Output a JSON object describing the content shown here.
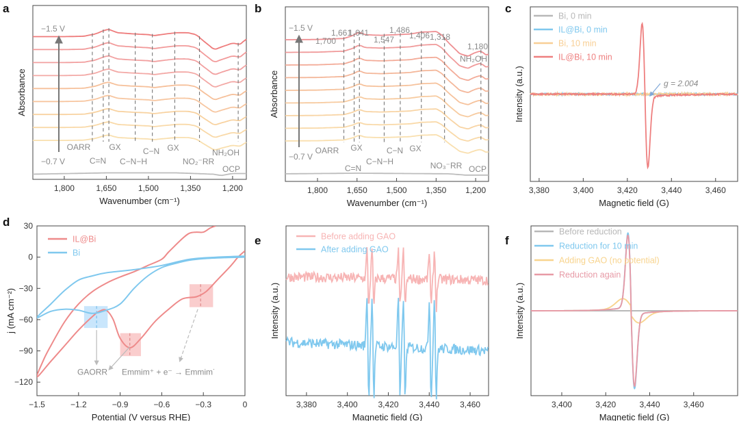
{
  "chart_data": [
    {
      "panel": "a",
      "type": "line",
      "xlabel": "Wavenumber (cm⁻¹)",
      "ylabel": "Absorbance",
      "xlim": [
        1912,
        1151
      ],
      "ylim": [
        -3,
        10.4
      ],
      "xticks": [
        1800,
        1650,
        1500,
        1350,
        1200
      ],
      "xtick_labels": [
        "1,800",
        "1,650",
        "1,500",
        "1,350",
        "1,200"
      ],
      "potential_top": "−1.5 V",
      "potential_bottom": "−0.7 V",
      "curve_count": 9,
      "curve_colors": [
        "#f9dfae",
        "#f9d9a8",
        "#f8d2a0",
        "#f7c6a0",
        "#f6c09a",
        "#f3a9a6",
        "#f2a0a0",
        "#f29a9a",
        "#ee7b7b"
      ],
      "ocp_color": "#bdbdbd",
      "profile": [
        [
          1912,
          0
        ],
        [
          1800,
          0
        ],
        [
          1730,
          0.03
        ],
        [
          1690,
          0.2
        ],
        [
          1655,
          0.5
        ],
        [
          1641,
          0.55
        ],
        [
          1610,
          0.3
        ],
        [
          1560,
          0.22
        ],
        [
          1500,
          0.15
        ],
        [
          1480,
          0.08
        ],
        [
          1440,
          0.2
        ],
        [
          1400,
          0.3
        ],
        [
          1360,
          0.3
        ],
        [
          1330,
          0.15
        ],
        [
          1300,
          -0.4
        ],
        [
          1265,
          -1.0
        ],
        [
          1240,
          -0.8
        ],
        [
          1200,
          -0.5
        ],
        [
          1175,
          -0.6
        ],
        [
          1151,
          -0.2
        ]
      ],
      "ocp_profile": [
        [
          1912,
          -2.6
        ],
        [
          1650,
          -2.5
        ],
        [
          1400,
          -2.5
        ],
        [
          1270,
          -2.6
        ],
        [
          1240,
          -2.7
        ],
        [
          1200,
          -2.55
        ],
        [
          1151,
          -2.55
        ]
      ],
      "marker_lines": [
        1700,
        1661,
        1641,
        1547,
        1486,
        1406,
        1318,
        1180
      ],
      "annotations": [
        "OARR",
        "C=N",
        "GX",
        "C−N−H",
        "C−N",
        "GX",
        "NO₂⁻RR",
        "NH₂OH",
        "OCP"
      ]
    },
    {
      "panel": "b",
      "type": "line",
      "xlabel": "Wavenumber (cm⁻¹)",
      "ylabel": "Absorbance",
      "xlim": [
        1922,
        1151
      ],
      "ylim": [
        -3.2,
        10.6
      ],
      "xticks": [
        1800,
        1650,
        1500,
        1350,
        1200
      ],
      "xtick_labels": [
        "1,800",
        "1,650",
        "1,500",
        "1,350",
        "1,200"
      ],
      "potential_top": "−1.5 V",
      "potential_bottom": "−0.7 V",
      "curve_count": 9,
      "curve_colors": [
        "#f9dfae",
        "#f9d9a8",
        "#f8d4a4",
        "#f7cba0",
        "#f6c29c",
        "#f4b79a",
        "#f3ab98",
        "#f09a9a",
        "#ee8f92"
      ],
      "ocp_color": "#bdbdbd",
      "profile": [
        [
          1922,
          0
        ],
        [
          1800,
          0.02
        ],
        [
          1700,
          0.1
        ],
        [
          1670,
          0.3
        ],
        [
          1641,
          0.6
        ],
        [
          1620,
          0.4
        ],
        [
          1560,
          0.35
        ],
        [
          1500,
          0.4
        ],
        [
          1450,
          0.45
        ],
        [
          1406,
          0.6
        ],
        [
          1350,
          0.65
        ],
        [
          1330,
          0.4
        ],
        [
          1300,
          -0.3
        ],
        [
          1260,
          -1.1
        ],
        [
          1230,
          -1.3
        ],
        [
          1200,
          -1.0
        ],
        [
          1180,
          -0.9
        ],
        [
          1160,
          -1.2
        ],
        [
          1151,
          -1.15
        ]
      ],
      "ocp_profile": [
        [
          1922,
          -2.6
        ],
        [
          1650,
          -2.55
        ],
        [
          1300,
          -2.6
        ],
        [
          1240,
          -2.7
        ],
        [
          1151,
          -2.7
        ]
      ],
      "peak_labels": [
        "1,700",
        "1,661",
        "1,641",
        "1,547",
        "1,486",
        "1,406",
        "1,318",
        "1,180"
      ],
      "marker_lines": [
        1700,
        1661,
        1641,
        1547,
        1486,
        1406,
        1318,
        1180
      ],
      "annotations": [
        "OARR",
        "GX",
        "C=N",
        "C−N−H",
        "C−N",
        "GX",
        "NO₃⁻RR",
        "NH₂OH",
        "OCP"
      ]
    },
    {
      "panel": "c",
      "type": "line",
      "xlabel": "Magnetic field (G)",
      "ylabel": "Intensity (a.u.)",
      "xlim": [
        3376,
        3470
      ],
      "ylim": [
        -1.15,
        1.15
      ],
      "xticks": [
        3380,
        3400,
        3420,
        3440,
        3460
      ],
      "xtick_labels": [
        "3,380",
        "3,400",
        "3,420",
        "3,440",
        "3,460"
      ],
      "legend_position": "top-left",
      "series": [
        {
          "name": "Bi, 0 min",
          "color": "#b8b8b8",
          "amplitude": 0,
          "noise": 0.01
        },
        {
          "name": "IL@Bi, 0 min",
          "color": "#7fc8ee",
          "amplitude": 0,
          "noise": 0.012
        },
        {
          "name": "Bi, 10 min",
          "color": "#f8cf95",
          "amplitude": 0,
          "noise": 0.015
        },
        {
          "name": "IL@Bi, 10 min",
          "color": "#ee7f7f",
          "amplitude": 0.93,
          "center": 3428,
          "width": 1.3,
          "noise": 0.01
        }
      ],
      "annotation": "g = 2.004",
      "annotation_color": "#7fa8d8"
    },
    {
      "panel": "d",
      "type": "line",
      "xlabel": "Potential (V versus RHE)",
      "ylabel": "j (mA cm⁻²)",
      "xlim": [
        -1.5,
        0
      ],
      "ylim": [
        -133,
        30
      ],
      "xticks": [
        -1.5,
        -1.2,
        -0.9,
        -0.6,
        -0.3,
        0
      ],
      "xtick_labels": [
        "−1.5",
        "−1.2",
        "−0.9",
        "−0.6",
        "−0.3",
        "0"
      ],
      "yticks": [
        30,
        0,
        -30,
        -60,
        -90,
        -120
      ],
      "ytick_labels": [
        "30",
        "0",
        "−30",
        "−60",
        "−90",
        "−120"
      ],
      "legend_position": "top-left",
      "series": [
        {
          "name": "IL@Bi",
          "color": "#ee8a8a",
          "points": [
            [
              0,
              6
            ],
            [
              -0.05,
              0
            ],
            [
              -0.1,
              -8
            ],
            [
              -0.2,
              -22
            ],
            [
              -0.28,
              -33
            ],
            [
              -0.35,
              -38
            ],
            [
              -0.45,
              -40
            ],
            [
              -0.55,
              -50
            ],
            [
              -0.65,
              -62
            ],
            [
              -0.75,
              -78
            ],
            [
              -0.83,
              -87
            ],
            [
              -0.9,
              -78
            ],
            [
              -0.95,
              -60
            ],
            [
              -1.0,
              -51
            ],
            [
              -1.05,
              -52
            ],
            [
              -1.1,
              -57
            ],
            [
              -1.2,
              -70
            ],
            [
              -1.3,
              -85
            ],
            [
              -1.4,
              -100
            ],
            [
              -1.5,
              -115
            ],
            [
              -1.45,
              -98
            ],
            [
              -1.4,
              -85
            ],
            [
              -1.3,
              -62
            ],
            [
              -1.2,
              -45
            ],
            [
              -1.1,
              -33
            ],
            [
              -1.0,
              -25
            ],
            [
              -0.9,
              -19
            ],
            [
              -0.8,
              -14
            ],
            [
              -0.7,
              -8
            ],
            [
              -0.6,
              -2
            ],
            [
              -0.55,
              5
            ],
            [
              -0.45,
              18
            ],
            [
              -0.4,
              23
            ],
            [
              -0.35,
              24
            ],
            [
              -0.3,
              24
            ],
            [
              -0.25,
              28
            ],
            [
              -0.21,
              30
            ]
          ]
        },
        {
          "name": "Bi",
          "color": "#7fc8ee",
          "points": [
            [
              0,
              0
            ],
            [
              -0.15,
              -0.5
            ],
            [
              -0.3,
              -1.5
            ],
            [
              -0.4,
              -3
            ],
            [
              -0.5,
              -6
            ],
            [
              -0.6,
              -10
            ],
            [
              -0.7,
              -18
            ],
            [
              -0.8,
              -30
            ],
            [
              -0.9,
              -45
            ],
            [
              -1.0,
              -51
            ],
            [
              -1.1,
              -54
            ],
            [
              -1.2,
              -51
            ],
            [
              -1.3,
              -50
            ],
            [
              -1.4,
              -52
            ],
            [
              -1.5,
              -58
            ],
            [
              -1.4,
              -45
            ],
            [
              -1.3,
              -32
            ],
            [
              -1.2,
              -22
            ],
            [
              -1.1,
              -18
            ],
            [
              -1.0,
              -15
            ],
            [
              -0.8,
              -12
            ],
            [
              -0.6,
              -8
            ],
            [
              -0.4,
              -2
            ],
            [
              -0.2,
              0
            ],
            [
              0,
              1
            ]
          ]
        }
      ],
      "highlight_regions": [
        {
          "x": [
            -1.16,
            -0.99
          ],
          "y": [
            -68,
            -47
          ],
          "center": -1.07,
          "color": "#bfe2fb"
        },
        {
          "x": [
            -0.9,
            -0.75
          ],
          "y": [
            -95,
            -73
          ],
          "center": -0.83,
          "color": "#f9c4c4"
        },
        {
          "x": [
            -0.4,
            -0.23
          ],
          "y": [
            -48,
            -26
          ],
          "center": -0.32,
          "color": "#f9c4c4"
        }
      ],
      "annotations": [
        "GAORR",
        "Emmim⁺ + e⁻ → Emmim˙"
      ]
    },
    {
      "panel": "e",
      "type": "line",
      "xlabel": "Magnetic field (G)",
      "ylabel": "Intensity (a.u.)",
      "xlim": [
        3370,
        3469
      ],
      "ylim": [
        -1,
        1
      ],
      "xticks": [
        3380,
        3400,
        3420,
        3440,
        3460
      ],
      "xtick_labels": [
        "3,380",
        "3,400",
        "3,420",
        "3,440",
        "3,460"
      ],
      "legend_position": "top-left",
      "hyperfine_lines": [
        3410,
        3412.5,
        3425.3,
        3427.8,
        3440.5,
        3443
      ],
      "series": [
        {
          "name": "Before adding GAO",
          "color": "#f7b4b4",
          "offset": 0.4,
          "amplitude": 0.33,
          "noise": 0.06,
          "slope": -0.04
        },
        {
          "name": "After adding GAO",
          "color": "#7fc8ee",
          "offset": -0.37,
          "amplitude": 0.6,
          "noise": 0.06,
          "slope": -0.1
        }
      ]
    },
    {
      "panel": "f",
      "type": "line",
      "xlabel": "Magnetic field (G)",
      "ylabel": "Intensity (a.u.)",
      "xlim": [
        3386,
        3480
      ],
      "ylim": [
        -1.1,
        1.1
      ],
      "xticks": [
        3400,
        3420,
        3440,
        3460
      ],
      "xtick_labels": [
        "3,400",
        "3,420",
        "3,440",
        "3,460"
      ],
      "legend_position": "top-left",
      "series": [
        {
          "name": "Before reduction",
          "color": "#b8b8b8",
          "amplitude": 0,
          "center": 3431.5,
          "width": 1.5
        },
        {
          "name": "Reduction for 10 min",
          "color": "#7fc8ee",
          "amplitude": 0.96,
          "center": 3431.6,
          "width": 1.5
        },
        {
          "name": "Adding GAO (no potential)",
          "color": "#f8d48e",
          "amplitude": 0.12,
          "center": 3431.5,
          "width": 4
        },
        {
          "name": "Reduction again",
          "color": "#e79aa6",
          "amplitude": 0.93,
          "center": 3431.6,
          "width": 1.5
        }
      ]
    }
  ]
}
